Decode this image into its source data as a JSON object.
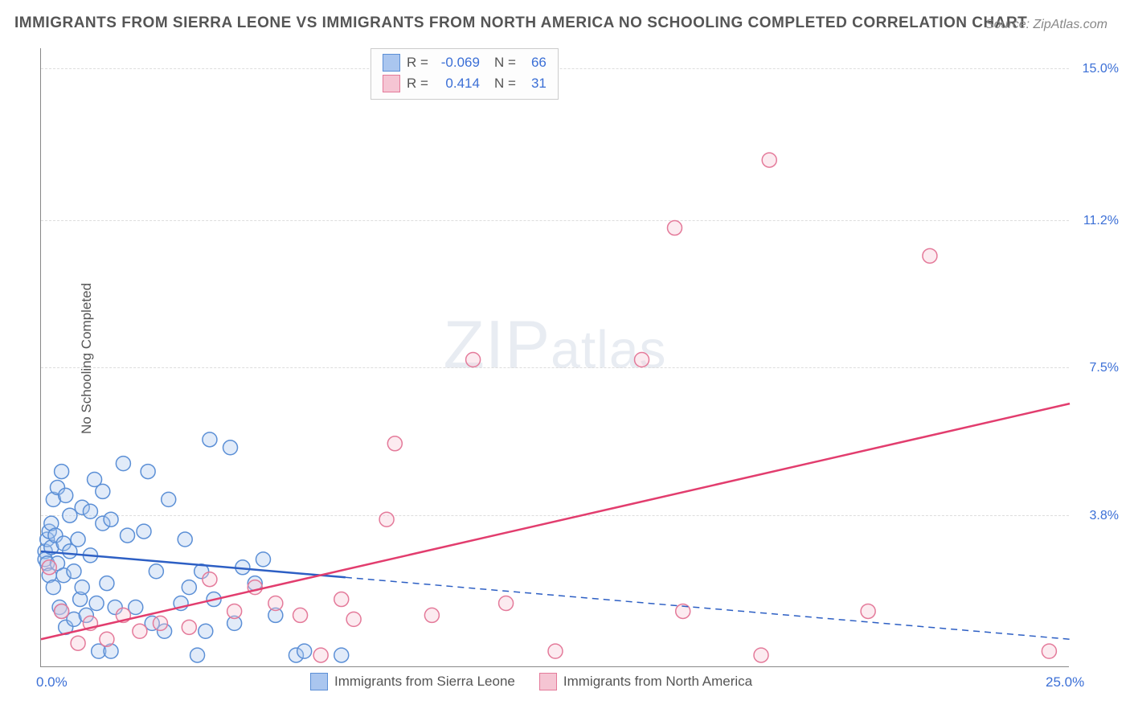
{
  "title": "IMMIGRANTS FROM SIERRA LEONE VS IMMIGRANTS FROM NORTH AMERICA NO SCHOOLING COMPLETED CORRELATION CHART",
  "source": "Source: ZipAtlas.com",
  "y_axis_label": "No Schooling Completed",
  "watermark_a": "ZIP",
  "watermark_b": "atlas",
  "chart": {
    "type": "scatter",
    "background_color": "#ffffff",
    "grid_color": "#dddddd",
    "axis_color": "#888888",
    "xlim": [
      0,
      25
    ],
    "ylim": [
      0,
      15.5
    ],
    "x_ticks": [
      {
        "v": 0.0,
        "label": "0.0%"
      },
      {
        "v": 25.0,
        "label": "25.0%"
      }
    ],
    "y_ticks": [
      {
        "v": 3.8,
        "label": "3.8%"
      },
      {
        "v": 7.5,
        "label": "7.5%"
      },
      {
        "v": 11.2,
        "label": "11.2%"
      },
      {
        "v": 15.0,
        "label": "15.0%"
      }
    ],
    "marker_radius": 9,
    "marker_stroke_width": 1.5,
    "marker_fill_opacity": 0.35,
    "line_width": 2.5,
    "series": [
      {
        "name": "Immigrants from Sierra Leone",
        "color_fill": "#aac6ef",
        "color_stroke": "#5b8fd6",
        "color_line": "#2d5fc4",
        "R": "-0.069",
        "N": "66",
        "trend": {
          "x1": 0,
          "y1": 2.9,
          "x2": 25,
          "y2": 0.7,
          "solid_until_x": 7.4
        },
        "points": [
          [
            0.1,
            2.9
          ],
          [
            0.1,
            2.7
          ],
          [
            0.15,
            2.6
          ],
          [
            0.15,
            3.2
          ],
          [
            0.2,
            3.4
          ],
          [
            0.2,
            2.3
          ],
          [
            0.25,
            3.0
          ],
          [
            0.25,
            3.6
          ],
          [
            0.3,
            4.2
          ],
          [
            0.3,
            2.0
          ],
          [
            0.35,
            3.3
          ],
          [
            0.4,
            2.6
          ],
          [
            0.4,
            4.5
          ],
          [
            0.45,
            1.5
          ],
          [
            0.5,
            1.4
          ],
          [
            0.5,
            4.9
          ],
          [
            0.55,
            3.1
          ],
          [
            0.55,
            2.3
          ],
          [
            0.6,
            4.3
          ],
          [
            0.6,
            1.0
          ],
          [
            0.7,
            3.8
          ],
          [
            0.7,
            2.9
          ],
          [
            0.8,
            1.2
          ],
          [
            0.8,
            2.4
          ],
          [
            0.9,
            3.2
          ],
          [
            0.95,
            1.7
          ],
          [
            1.0,
            4.0
          ],
          [
            1.0,
            2.0
          ],
          [
            1.1,
            1.3
          ],
          [
            1.2,
            2.8
          ],
          [
            1.2,
            3.9
          ],
          [
            1.3,
            4.7
          ],
          [
            1.35,
            1.6
          ],
          [
            1.4,
            0.4
          ],
          [
            1.5,
            3.6
          ],
          [
            1.5,
            4.4
          ],
          [
            1.6,
            2.1
          ],
          [
            1.7,
            0.4
          ],
          [
            1.7,
            3.7
          ],
          [
            1.8,
            1.5
          ],
          [
            2.0,
            5.1
          ],
          [
            2.1,
            3.3
          ],
          [
            2.3,
            1.5
          ],
          [
            2.5,
            3.4
          ],
          [
            2.6,
            4.9
          ],
          [
            2.7,
            1.1
          ],
          [
            2.8,
            2.4
          ],
          [
            3.0,
            0.9
          ],
          [
            3.1,
            4.2
          ],
          [
            3.4,
            1.6
          ],
          [
            3.5,
            3.2
          ],
          [
            3.6,
            2.0
          ],
          [
            3.8,
            0.3
          ],
          [
            3.9,
            2.4
          ],
          [
            4.0,
            0.9
          ],
          [
            4.1,
            5.7
          ],
          [
            4.2,
            1.7
          ],
          [
            4.6,
            5.5
          ],
          [
            4.7,
            1.1
          ],
          [
            4.9,
            2.5
          ],
          [
            5.2,
            2.1
          ],
          [
            5.4,
            2.7
          ],
          [
            5.7,
            1.3
          ],
          [
            6.2,
            0.3
          ],
          [
            6.4,
            0.4
          ],
          [
            7.3,
            0.3
          ]
        ]
      },
      {
        "name": "Immigrants from North America",
        "color_fill": "#f5c5d3",
        "color_stroke": "#e47a9a",
        "color_line": "#e23d6e",
        "R": "0.414",
        "N": "31",
        "trend": {
          "x1": 0,
          "y1": 0.7,
          "x2": 25,
          "y2": 6.6,
          "solid_until_x": 25
        },
        "points": [
          [
            0.2,
            2.5
          ],
          [
            0.5,
            1.4
          ],
          [
            0.9,
            0.6
          ],
          [
            1.2,
            1.1
          ],
          [
            1.6,
            0.7
          ],
          [
            2.0,
            1.3
          ],
          [
            2.4,
            0.9
          ],
          [
            2.9,
            1.1
          ],
          [
            3.6,
            1.0
          ],
          [
            4.1,
            2.2
          ],
          [
            4.7,
            1.4
          ],
          [
            5.2,
            2.0
          ],
          [
            5.7,
            1.6
          ],
          [
            6.3,
            1.3
          ],
          [
            6.8,
            0.3
          ],
          [
            7.3,
            1.7
          ],
          [
            7.6,
            1.2
          ],
          [
            8.4,
            3.7
          ],
          [
            8.6,
            5.6
          ],
          [
            9.5,
            1.3
          ],
          [
            10.5,
            7.7
          ],
          [
            11.3,
            1.6
          ],
          [
            12.5,
            0.4
          ],
          [
            14.6,
            7.7
          ],
          [
            15.6,
            1.4
          ],
          [
            15.4,
            11.0
          ],
          [
            17.5,
            0.3
          ],
          [
            17.7,
            12.7
          ],
          [
            20.1,
            1.4
          ],
          [
            21.6,
            10.3
          ],
          [
            24.5,
            0.4
          ]
        ]
      }
    ]
  },
  "legend_top_labels": {
    "R": "R =",
    "N": "N ="
  },
  "legend_bottom": [
    "Immigrants from Sierra Leone",
    "Immigrants from North America"
  ]
}
